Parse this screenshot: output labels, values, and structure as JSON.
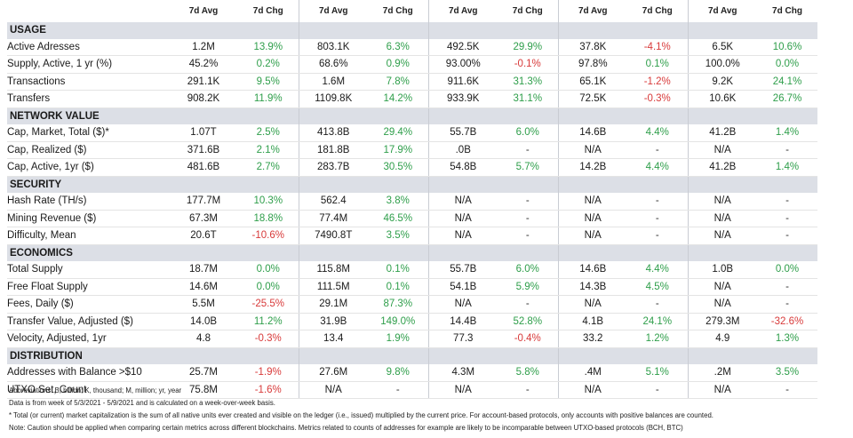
{
  "header": {
    "avg": "7d Avg",
    "chg": "7d Chg"
  },
  "sections": [
    {
      "title": "USAGE",
      "rows": [
        {
          "label": "Active Adresses",
          "cells": [
            [
              "1.2M",
              "13.9%"
            ],
            [
              "803.1K",
              "6.3%"
            ],
            [
              "492.5K",
              "29.9%"
            ],
            [
              "37.8K",
              "-4.1%"
            ],
            [
              "6.5K",
              "10.6%"
            ]
          ]
        },
        {
          "label": "Supply, Active, 1 yr (%)",
          "cells": [
            [
              "45.2%",
              "0.2%"
            ],
            [
              "68.6%",
              "0.9%"
            ],
            [
              "93.00%",
              "-0.1%"
            ],
            [
              "97.8%",
              "0.1%"
            ],
            [
              "100.0%",
              "0.0%"
            ]
          ]
        },
        {
          "label": "Transactions",
          "cells": [
            [
              "291.1K",
              "9.5%"
            ],
            [
              "1.6M",
              "7.8%"
            ],
            [
              "911.6K",
              "31.3%"
            ],
            [
              "65.1K",
              "-1.2%"
            ],
            [
              "9.2K",
              "24.1%"
            ]
          ]
        },
        {
          "label": "Transfers",
          "cells": [
            [
              "908.2K",
              "11.9%"
            ],
            [
              "1109.8K",
              "14.2%"
            ],
            [
              "933.9K",
              "31.1%"
            ],
            [
              "72.5K",
              "-0.3%"
            ],
            [
              "10.6K",
              "26.7%"
            ]
          ]
        }
      ]
    },
    {
      "title": "NETWORK VALUE",
      "rows": [
        {
          "label": "Cap, Market, Total ($)*",
          "cells": [
            [
              "1.07T",
              "2.5%"
            ],
            [
              "413.8B",
              "29.4%"
            ],
            [
              "55.7B",
              "6.0%"
            ],
            [
              "14.6B",
              "4.4%"
            ],
            [
              "41.2B",
              "1.4%"
            ]
          ]
        },
        {
          "label": "Cap, Realized ($)",
          "cells": [
            [
              "371.6B",
              "2.1%"
            ],
            [
              "181.8B",
              "17.9%"
            ],
            [
              ".0B",
              "-"
            ],
            [
              "N/A",
              "-"
            ],
            [
              "N/A",
              "-"
            ]
          ]
        },
        {
          "label": "Cap, Active, 1yr ($)",
          "cells": [
            [
              "481.6B",
              "2.7%"
            ],
            [
              "283.7B",
              "30.5%"
            ],
            [
              "54.8B",
              "5.7%"
            ],
            [
              "14.2B",
              "4.4%"
            ],
            [
              "41.2B",
              "1.4%"
            ]
          ]
        }
      ]
    },
    {
      "title": "SECURITY",
      "rows": [
        {
          "label": "Hash Rate (TH/s)",
          "cells": [
            [
              "177.7M",
              "10.3%"
            ],
            [
              "562.4",
              "3.8%"
            ],
            [
              "N/A",
              "-"
            ],
            [
              "N/A",
              "-"
            ],
            [
              "N/A",
              "-"
            ]
          ]
        },
        {
          "label": "Mining Revenue ($)",
          "cells": [
            [
              "67.3M",
              "18.8%"
            ],
            [
              "77.4M",
              "46.5%"
            ],
            [
              "N/A",
              "-"
            ],
            [
              "N/A",
              "-"
            ],
            [
              "N/A",
              "-"
            ]
          ]
        },
        {
          "label": "Difficulty, Mean",
          "cells": [
            [
              "20.6T",
              "-10.6%"
            ],
            [
              "7490.8T",
              "3.5%"
            ],
            [
              "N/A",
              "-"
            ],
            [
              "N/A",
              "-"
            ],
            [
              "N/A",
              "-"
            ]
          ]
        }
      ]
    },
    {
      "title": "ECONOMICS",
      "rows": [
        {
          "label": "Total Supply",
          "cells": [
            [
              "18.7M",
              "0.0%"
            ],
            [
              "115.8M",
              "0.1%"
            ],
            [
              "55.7B",
              "6.0%"
            ],
            [
              "14.6B",
              "4.4%"
            ],
            [
              "1.0B",
              "0.0%"
            ]
          ]
        },
        {
          "label": "Free Float Supply",
          "cells": [
            [
              "14.6M",
              "0.0%"
            ],
            [
              "111.5M",
              "0.1%"
            ],
            [
              "54.1B",
              "5.9%"
            ],
            [
              "14.3B",
              "4.5%"
            ],
            [
              "N/A",
              "-"
            ]
          ]
        },
        {
          "label": "Fees, Daily ($)",
          "cells": [
            [
              "5.5M",
              "-25.5%"
            ],
            [
              "29.1M",
              "87.3%"
            ],
            [
              "N/A",
              "-"
            ],
            [
              "N/A",
              "-"
            ],
            [
              "N/A",
              "-"
            ]
          ]
        },
        {
          "label": "Transfer Value, Adjusted ($)",
          "cells": [
            [
              "14.0B",
              "11.2%"
            ],
            [
              "31.9B",
              "149.0%"
            ],
            [
              "14.4B",
              "52.8%"
            ],
            [
              "4.1B",
              "24.1%"
            ],
            [
              "279.3M",
              "-32.6%"
            ]
          ]
        },
        {
          "label": "Velocity, Adjusted, 1yr",
          "cells": [
            [
              "4.8",
              "-0.3%"
            ],
            [
              "13.4",
              "1.9%"
            ],
            [
              "77.3",
              "-0.4%"
            ],
            [
              "33.2",
              "1.2%"
            ],
            [
              "4.9",
              "1.3%"
            ]
          ]
        }
      ]
    },
    {
      "title": "DISTRIBUTION",
      "rows": [
        {
          "label": "Addresses with Balance >$10",
          "cells": [
            [
              "25.7M",
              "-1.9%"
            ],
            [
              "27.6M",
              "9.8%"
            ],
            [
              "4.3M",
              "5.8%"
            ],
            [
              ".4M",
              "5.1%"
            ],
            [
              ".2M",
              "3.5%"
            ]
          ]
        },
        {
          "label": "UTXO Set, Count",
          "cells": [
            [
              "75.8M",
              "-1.6%"
            ],
            [
              "N/A",
              "-"
            ],
            [
              "N/A",
              "-"
            ],
            [
              "N/A",
              "-"
            ],
            [
              "N/A",
              "-"
            ]
          ]
        }
      ]
    }
  ],
  "notes": {
    "abbreviations": "Abbreviations: B, billion; K, thousand; M, million; yr, year",
    "data_period": "Data is from week of 5/3/2021 - 5/9/2021 and is calculated on a week-over-week basis.",
    "total_cap": "* Total (or current) market capitalization is the sum of all native units ever created and visible on the ledger (i.e., issued) multiplied by the current price. For account-based protocols, only accounts with positive balances are counted.",
    "caution": "Note: Caution should be applied when comparing certain metrics across different blockchains. Metrics related to counts of addresses for example are likely to be incomparable between UTXO-based protocols (BCH, BTC)"
  },
  "colors": {
    "positive": "#2e9e4a",
    "negative": "#d83a3a",
    "section_bg": "#dcdfe6"
  }
}
